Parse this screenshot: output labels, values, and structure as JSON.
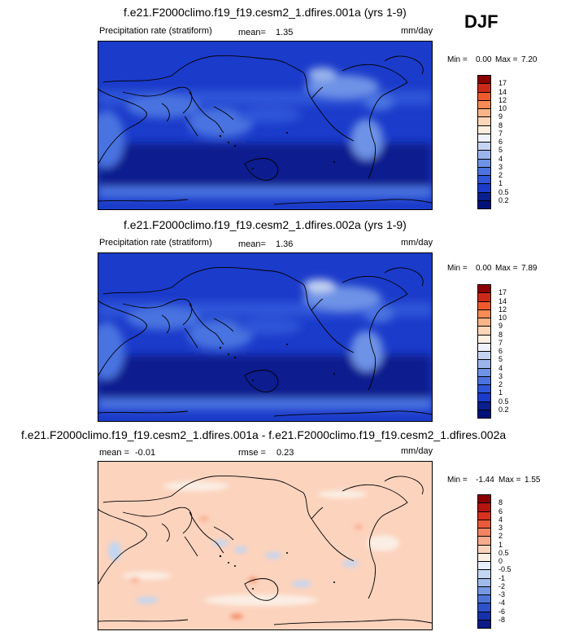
{
  "season": "DJF",
  "chart_data": [
    {
      "type": "heatmap",
      "title": "f.e21.F2000climo.f19_f19.cesm2_1.dfires.001a (yrs 1-9)",
      "field": "Precipitation rate (stratiform)",
      "mean_label": "mean=",
      "mean": "1.35",
      "units": "mm/day",
      "min_label": "Min =",
      "min": "0.00",
      "max_label": "Max =",
      "max": "7.20",
      "levels": [
        "17",
        "14",
        "12",
        "10",
        "9",
        "8",
        "7",
        "6",
        "5",
        "4",
        "3",
        "2",
        "1",
        "0.5",
        "0.2"
      ],
      "colors": [
        "#8b0000",
        "#cc2a18",
        "#ef5a2c",
        "#f68b55",
        "#f9b487",
        "#fcd6b8",
        "#fdeee2",
        "#eef2fb",
        "#c5d4f2",
        "#9bb5ec",
        "#6e93e6",
        "#4a73e0",
        "#2f55d8",
        "#1b3bca",
        "#0a1f8e",
        "#00127a"
      ]
    },
    {
      "type": "heatmap",
      "title": "f.e21.F2000climo.f19_f19.cesm2_1.dfires.002a (yrs 1-9)",
      "field": "Precipitation rate (stratiform)",
      "mean_label": "mean=",
      "mean": "1.36",
      "units": "mm/day",
      "min_label": "Min =",
      "min": "0.00",
      "max_label": "Max =",
      "max": "7.89",
      "levels": [
        "17",
        "14",
        "12",
        "10",
        "9",
        "8",
        "7",
        "6",
        "5",
        "4",
        "3",
        "2",
        "1",
        "0.5",
        "0.2"
      ],
      "colors": [
        "#8b0000",
        "#cc2a18",
        "#ef5a2c",
        "#f68b55",
        "#f9b487",
        "#fcd6b8",
        "#fdeee2",
        "#eef2fb",
        "#c5d4f2",
        "#9bb5ec",
        "#6e93e6",
        "#4a73e0",
        "#2f55d8",
        "#1b3bca",
        "#0a1f8e",
        "#00127a"
      ]
    },
    {
      "type": "heatmap",
      "title": "f.e21.F2000climo.f19_f19.cesm2_1.dfires.001a - f.e21.F2000climo.f19_f19.cesm2_1.dfires.002a",
      "mean_label": "mean =",
      "mean": "-0.01",
      "rmse_label": "rmse =",
      "rmse": "0.23",
      "units": "mm/day",
      "min_label": "Min =",
      "min": "-1.44",
      "max_label": "Max =",
      "max": "1.55",
      "levels": [
        "8",
        "6",
        "4",
        "3",
        "2",
        "1",
        "0.5",
        "0",
        "-0.5",
        "-1",
        "-2",
        "-3",
        "-4",
        "-6",
        "-8"
      ],
      "colors": [
        "#8b0000",
        "#b5140f",
        "#d8321f",
        "#ea5a3a",
        "#f28462",
        "#f8ab8c",
        "#fcd3bd",
        "#fbeee4",
        "#e6eefa",
        "#c3d6f1",
        "#9ebbea",
        "#7698e2",
        "#4e74d8",
        "#2e50c9",
        "#1530a8",
        "#0b1a86"
      ]
    }
  ]
}
